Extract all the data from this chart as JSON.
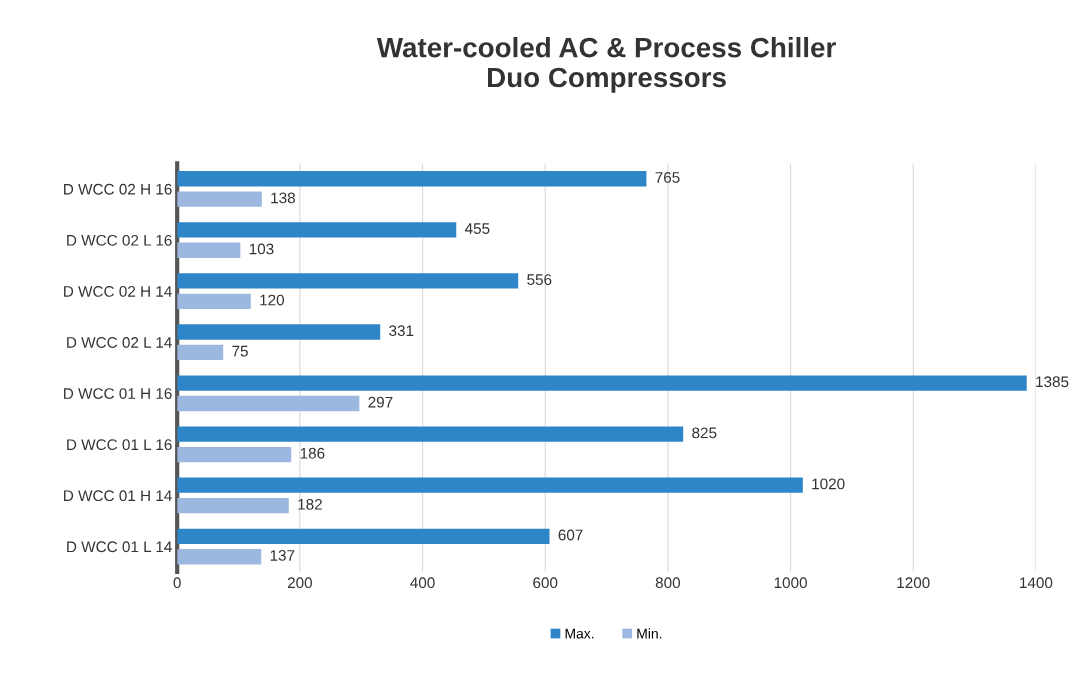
{
  "chart_data": {
    "type": "bar",
    "orientation": "horizontal",
    "title": "Water-cooled AC & Process Chiller\nDuo Compressors",
    "categories": [
      "D WCC 02 H 16",
      "D WCC 02 L 16",
      "D WCC 02 H 14",
      "D WCC 02 L 14",
      "D WCC 01 H 16",
      "D WCC 01 L 16",
      "D WCC 01 H 14",
      "D WCC 01 L 14"
    ],
    "series": [
      {
        "name": "Max.",
        "color": "#2e86c8",
        "values": [
          765,
          455,
          556,
          331,
          1385,
          825,
          1020,
          607
        ]
      },
      {
        "name": "Min.",
        "color": "#9db8e0",
        "values": [
          138,
          103,
          120,
          75,
          297,
          186,
          182,
          137
        ]
      }
    ],
    "xlim": [
      0,
      1400
    ],
    "xticks": [
      0,
      200,
      400,
      600,
      800,
      1000,
      1200,
      1400
    ],
    "grid": "x",
    "legend": "bottom",
    "data_labels": true
  }
}
